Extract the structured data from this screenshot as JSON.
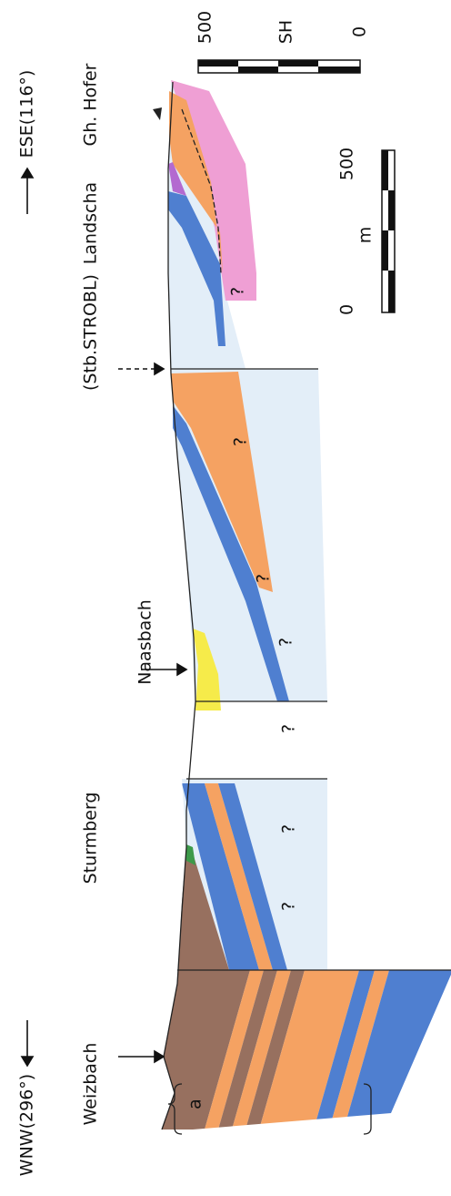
{
  "labels": {
    "wnw": "WNW(296°)",
    "ese": "ESE(116°)",
    "weizbach": "Weizbach",
    "sturmberg": "Sturmberg",
    "naasbach": "Naasbach",
    "strobl": "(Stb.STROBL)",
    "landscha": "Landscha",
    "hofer": "Gh. Hofer",
    "a": "a"
  },
  "question_marks": [
    "?",
    "?",
    "?",
    "?",
    "?",
    "?",
    "?"
  ],
  "scale_sh": {
    "max": "500",
    "unit": "SH",
    "min": "0"
  },
  "scale_m": {
    "max": "500",
    "unit": "m",
    "min": "0"
  }
}
